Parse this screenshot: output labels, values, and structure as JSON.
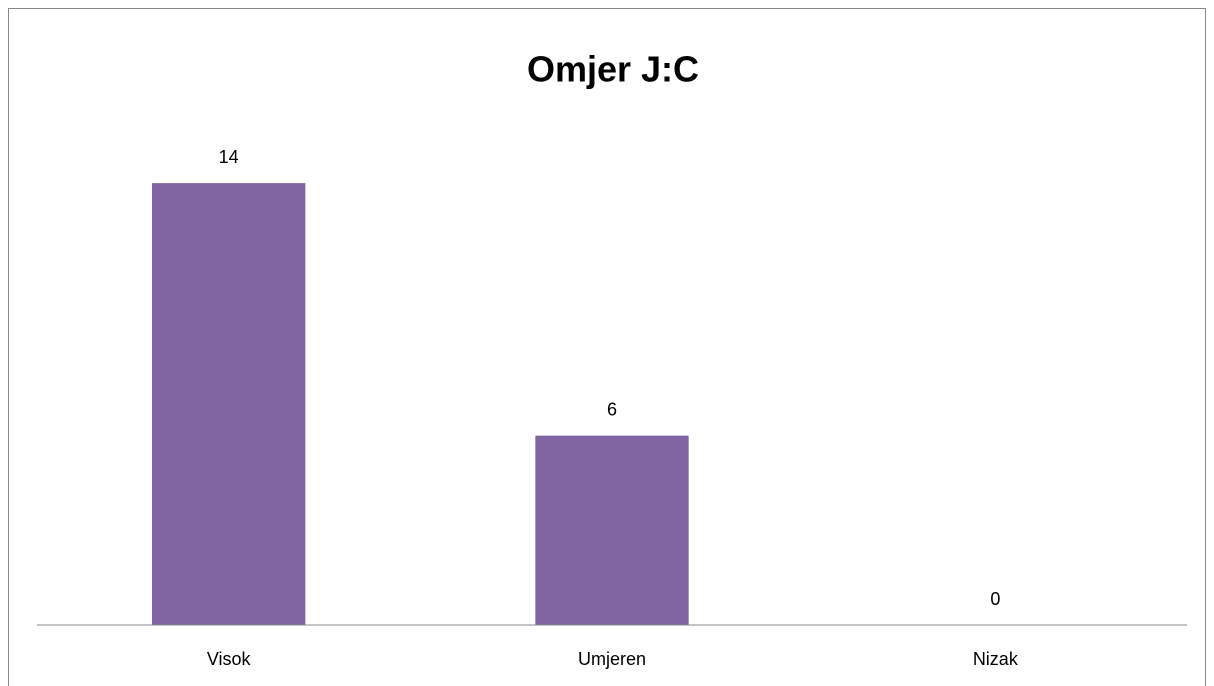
{
  "chart_data": {
    "type": "bar",
    "title": "Omjer J:C",
    "categories": [
      "Visok",
      "Umjeren",
      "Nizak"
    ],
    "values": [
      14,
      6,
      0
    ],
    "color": "#8064a2",
    "ylim": [
      0,
      16
    ],
    "data_labels": true
  }
}
